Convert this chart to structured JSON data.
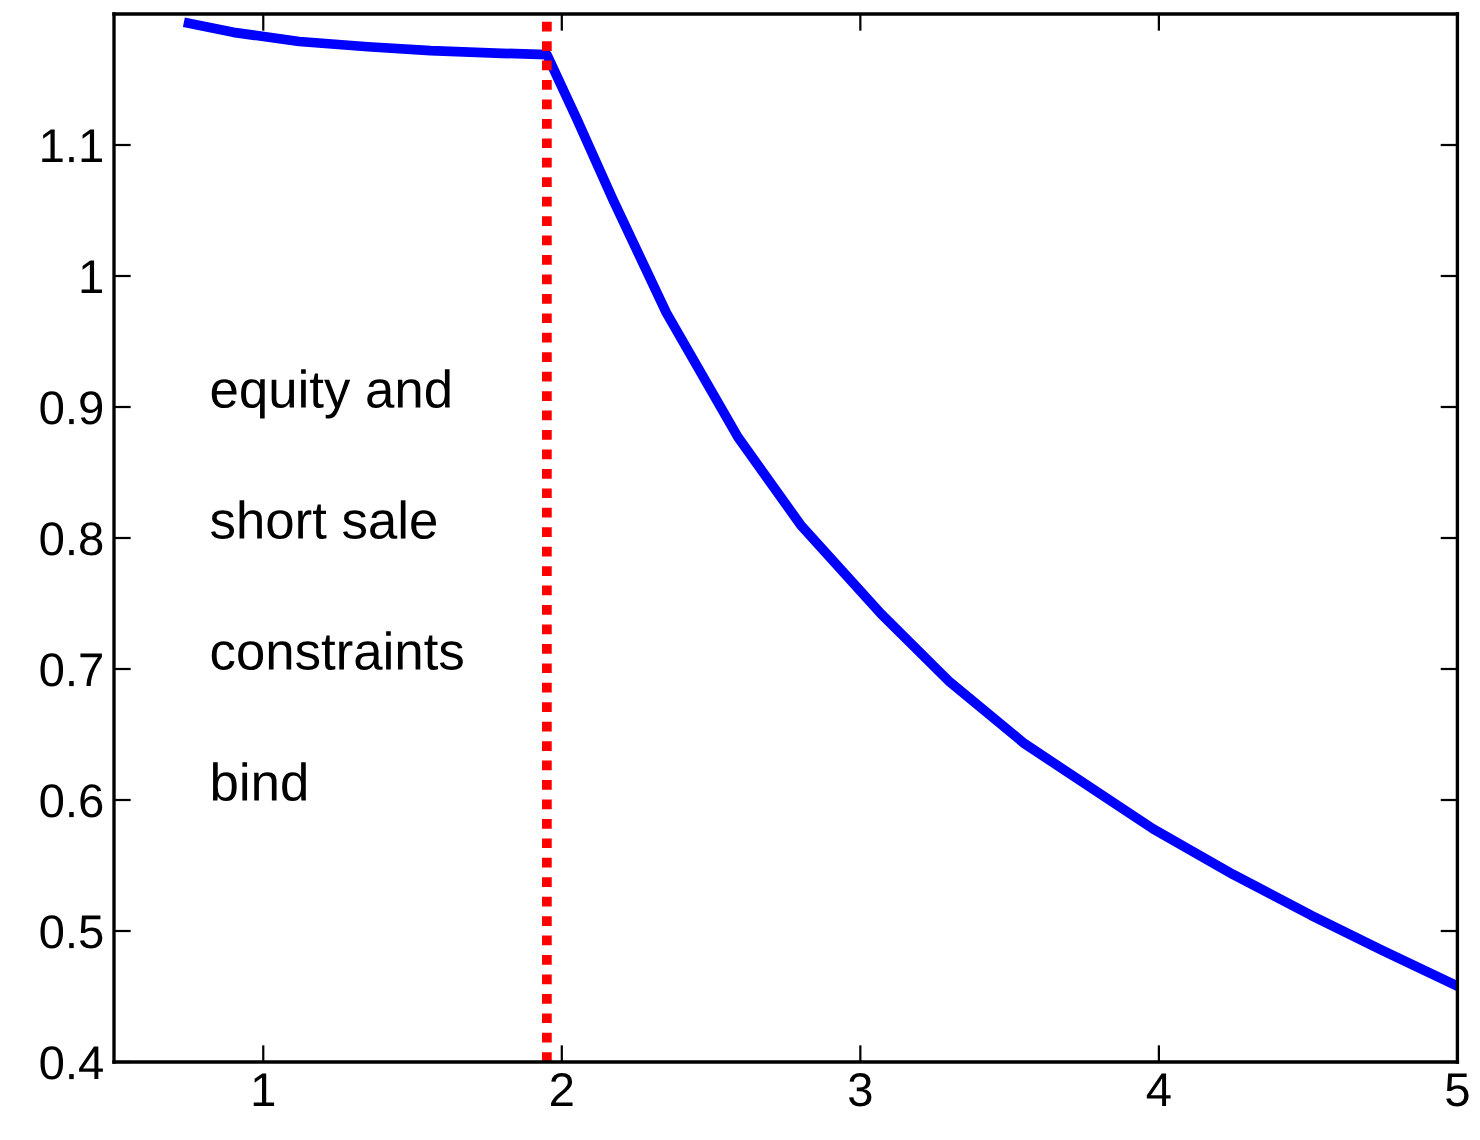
{
  "chart_data": {
    "type": "line",
    "x": [
      0.75,
      0.9,
      1.12,
      1.35,
      1.56,
      1.8,
      1.95,
      2.05,
      2.17,
      2.35,
      2.59,
      2.8,
      3.07,
      3.3,
      3.55,
      3.98,
      4.25,
      4.51,
      4.75,
      5.0
    ],
    "series": [
      {
        "color": "#0000ff",
        "values": [
          1.193,
          1.186,
          1.179,
          1.175,
          1.172,
          1.17,
          1.169,
          1.12,
          1.059,
          0.972,
          0.877,
          0.81,
          0.742,
          0.69,
          0.643,
          0.578,
          0.543,
          0.512,
          0.485,
          0.458
        ]
      }
    ],
    "xlim": [
      0.5,
      5
    ],
    "ylim": [
      0.4,
      1.2
    ],
    "xticks": [
      1,
      2,
      3,
      4,
      5
    ],
    "yticks": [
      0.4,
      0.5,
      0.6,
      0.7,
      0.8,
      0.9,
      1,
      1.1
    ],
    "ref_lines": [
      {
        "axis": "x",
        "value": 1.95,
        "color": "#ff0000",
        "line_style": "dotted"
      }
    ],
    "annotations": [
      "equity and",
      "short sale",
      "constraints",
      "bind"
    ],
    "line_style": "solid",
    "grid": false,
    "legend": false
  }
}
